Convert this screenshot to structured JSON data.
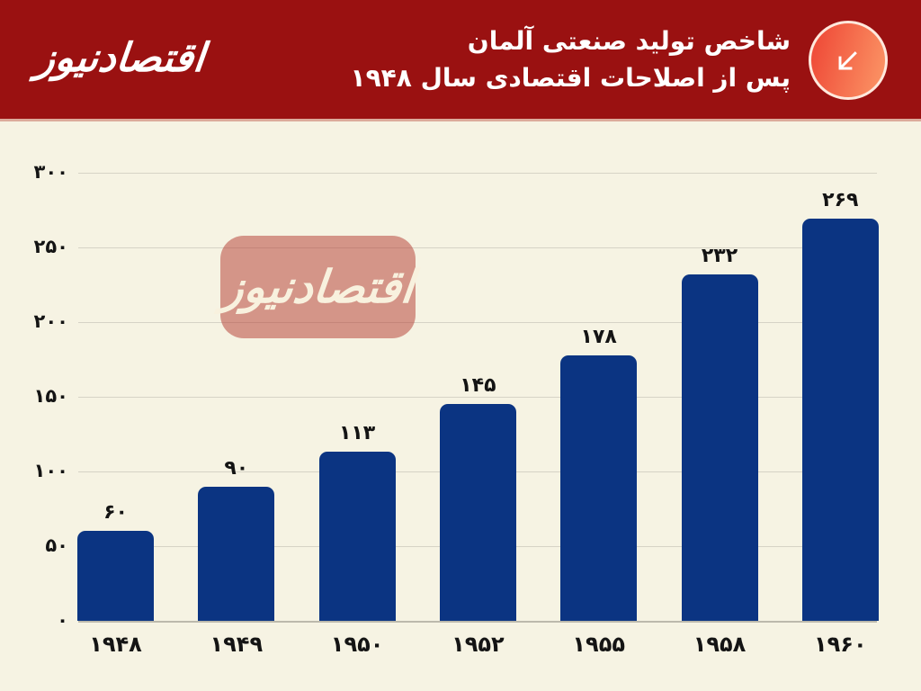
{
  "header": {
    "brand_logo_text": "اقتصادنیوز",
    "title_line1": "شاخص تولید صنعتی آلمان",
    "title_line2": "پس از اصلاحات اقتصادی سال ۱۹۴۸",
    "icon": "arrow-down-left-icon",
    "colors": {
      "banner_background": "#9a1111",
      "title_text": "#ffffff",
      "icon_gradient_start": "#ef4b38",
      "icon_gradient_end": "#fb9163"
    }
  },
  "watermark": {
    "text": "اقتصادنیوز"
  },
  "chart_data": {
    "type": "bar",
    "title": "شاخص تولید صنعتی آلمان پس از اصلاحات اقتصادی سال ۱۹۴۸",
    "categories": [
      "1948",
      "1949",
      "1950",
      "1952",
      "1955",
      "1958",
      "1960"
    ],
    "category_labels": [
      "۱۹۴۸",
      "۱۹۴۹",
      "۱۹۵۰",
      "۱۹۵۲",
      "۱۹۵۵",
      "۱۹۵۸",
      "۱۹۶۰"
    ],
    "values": [
      60,
      90,
      113,
      145,
      178,
      232,
      269
    ],
    "value_labels": [
      "۶۰",
      "۹۰",
      "۱۱۳",
      "۱۴۵",
      "۱۷۸",
      "۲۳۲",
      "۲۶۹"
    ],
    "xlabel": "",
    "ylabel": "",
    "ylim": [
      0,
      300
    ],
    "ytick_values": [
      0,
      50,
      100,
      150,
      200,
      250,
      300
    ],
    "ytick_labels": [
      "۰",
      "۵۰",
      "۱۰۰",
      "۱۵۰",
      "۲۰۰",
      "۲۵۰",
      "۳۰۰"
    ],
    "grid": true,
    "legend": false,
    "bar_color": "#0b3482",
    "background_color": "#f6f3e3"
  }
}
